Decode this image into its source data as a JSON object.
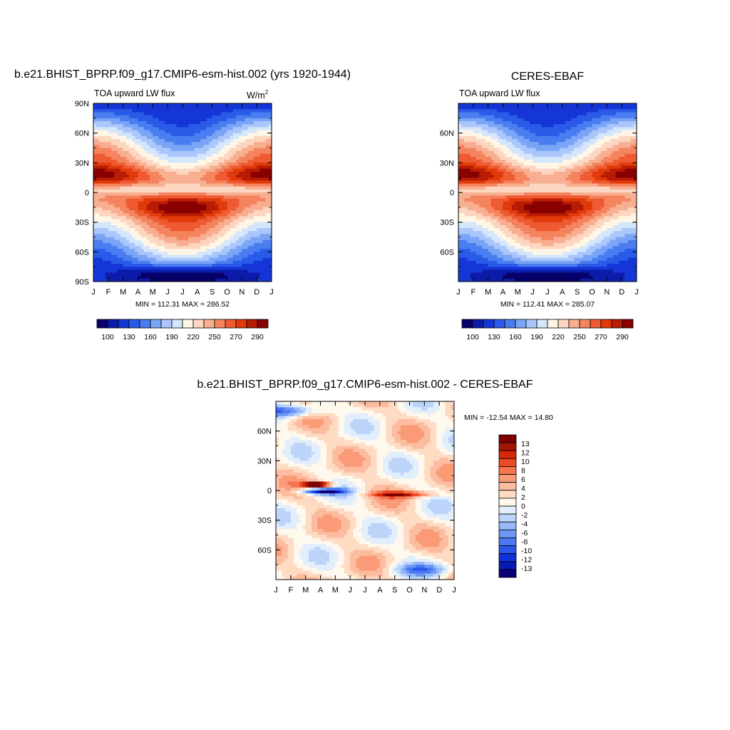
{
  "colors": {
    "abs_levels": [
      "#08006a",
      "#0c1ca8",
      "#1436d6",
      "#2a5ae8",
      "#4a7ef0",
      "#7aa4f6",
      "#aac6fa",
      "#d4e6fc",
      "#fff6e6",
      "#fcd6c0",
      "#f8ae90",
      "#f4845e",
      "#ee5a32",
      "#e03a0a",
      "#b81c04",
      "#880000"
    ],
    "diff_levels": [
      "#0a0078",
      "#0818b4",
      "#1030dc",
      "#2a56ec",
      "#4a78f2",
      "#6c98f4",
      "#94b8f8",
      "#bcd4fa",
      "#e2eefc",
      "#fff8ec",
      "#fedcc4",
      "#fcbca0",
      "#fa9a76",
      "#f6744e",
      "#ec4a24",
      "#d42808",
      "#a41404",
      "#7c0000"
    ]
  },
  "chart_data": [
    {
      "type": "heatmap",
      "title": "b.e21.BHIST_BPRP.f09_g17.CMIP6-esm-hist.002 (yrs 1920-1944)",
      "subtitle": "TOA upward LW flux",
      "units_label": "W/m",
      "units_exp": "2",
      "x_ticks": [
        "J",
        "F",
        "M",
        "A",
        "M",
        "J",
        "J",
        "A",
        "S",
        "O",
        "N",
        "D",
        "J"
      ],
      "y_ticks": [
        "90N",
        "60N",
        "30N",
        "0",
        "30S",
        "60S",
        "90S"
      ],
      "stats": "MIN = 112.31 MAX = 286.52",
      "colorbar_labels": [
        "100",
        "130",
        "160",
        "190",
        "220",
        "250",
        "270",
        "290"
      ],
      "z_range": [
        112.31,
        286.52
      ]
    },
    {
      "type": "heatmap",
      "title": "CERES-EBAF",
      "subtitle": "TOA upward LW flux",
      "x_ticks": [
        "J",
        "F",
        "M",
        "A",
        "M",
        "J",
        "J",
        "A",
        "S",
        "O",
        "N",
        "D",
        "J"
      ],
      "y_ticks": [
        "60N",
        "30N",
        "0",
        "30S",
        "60S"
      ],
      "stats": "MIN = 112.41 MAX = 285.07",
      "colorbar_labels": [
        "100",
        "130",
        "160",
        "190",
        "220",
        "250",
        "270",
        "290"
      ],
      "z_range": [
        112.41,
        285.07
      ]
    },
    {
      "type": "heatmap",
      "title": "b.e21.BHIST_BPRP.f09_g17.CMIP6-esm-hist.002 - CERES-EBAF",
      "x_ticks": [
        "J",
        "F",
        "M",
        "A",
        "M",
        "J",
        "J",
        "A",
        "S",
        "O",
        "N",
        "D",
        "J"
      ],
      "y_ticks": [
        "60N",
        "30N",
        "0",
        "30S",
        "60S"
      ],
      "stats": "MIN = -12.54 MAX =  14.80",
      "colorbar_labels": [
        "13",
        "12",
        "10",
        "8",
        "6",
        "4",
        "2",
        "0",
        "-2",
        "-4",
        "-6",
        "-8",
        "-10",
        "-12",
        "-13"
      ],
      "z_range": [
        -12.54,
        14.8
      ]
    }
  ]
}
